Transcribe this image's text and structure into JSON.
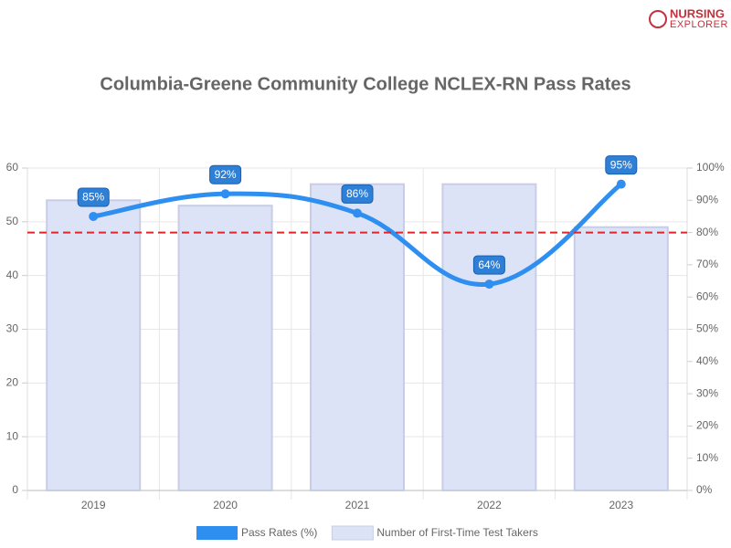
{
  "logo": [
    "NURSING",
    "EXPLORER"
  ],
  "chart_data": {
    "type": "combo",
    "title": "Columbia-Greene Community College NCLEX-RN Pass Rates",
    "categories": [
      "2019",
      "2020",
      "2021",
      "2022",
      "2023"
    ],
    "series": [
      {
        "name": "Pass Rates (%)",
        "type": "line",
        "axis": "y2",
        "color": "#2e8ff0",
        "values": [
          85,
          92,
          86,
          64,
          95
        ],
        "value_labels": [
          "85%",
          "92%",
          "86%",
          "64%",
          "95%"
        ]
      },
      {
        "name": "Number of First-Time Test Takers",
        "type": "bar",
        "color": "#dde3f7",
        "border": "#c8cde6",
        "values": [
          54,
          53,
          57,
          57,
          49
        ]
      }
    ],
    "ylim": [
      0,
      60
    ],
    "yticks": [
      0,
      10,
      20,
      30,
      40,
      50,
      60
    ],
    "y2lim": [
      0,
      100
    ],
    "y2ticks": [
      {
        "value": 0,
        "label": "0%"
      },
      {
        "value": 10,
        "label": "10%"
      },
      {
        "value": 20,
        "label": "20%"
      },
      {
        "value": 30,
        "label": "30%"
      },
      {
        "value": 40,
        "label": "40%"
      },
      {
        "value": 50,
        "label": "50%"
      },
      {
        "value": 60,
        "label": "60%"
      },
      {
        "value": 70,
        "label": "70%"
      },
      {
        "value": 80,
        "label": "80%"
      },
      {
        "value": 90,
        "label": "90%"
      },
      {
        "value": 100,
        "label": "100%"
      }
    ],
    "reference_line": {
      "value": 80,
      "axis": "y2",
      "color": "#e0262b"
    },
    "grid": true,
    "legend": "bottom"
  }
}
